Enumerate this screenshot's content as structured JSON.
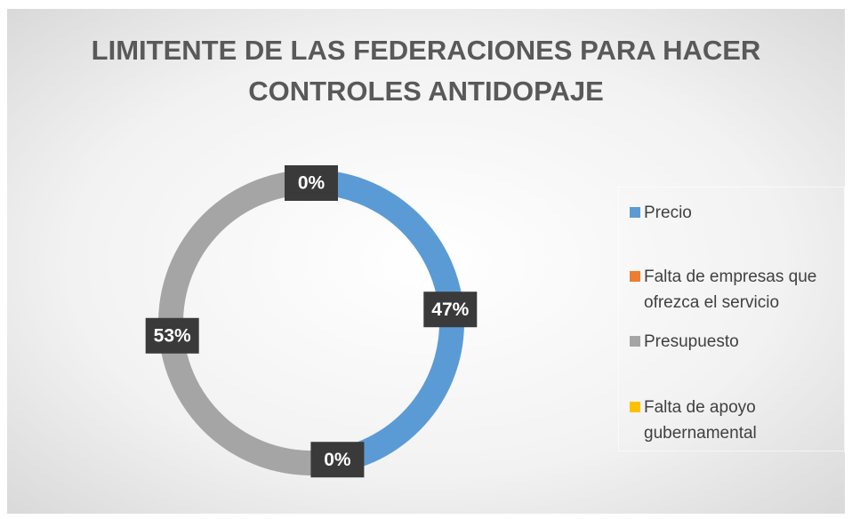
{
  "chart_data": {
    "type": "doughnut",
    "title": "LIMITENTE DE LAS FEDERACIONES PARA HACER CONTROLES ANTIDOPAJE",
    "categories": [
      "Precio",
      "Falta de empresas que ofrezca el servicio",
      "Presupuesto",
      "Falta de apoyo gubernamental"
    ],
    "values": [
      47,
      0,
      53,
      0
    ],
    "value_labels": [
      "47%",
      "0%",
      "53%",
      "0%"
    ],
    "colors": [
      "#5b9bd5",
      "#ed7d31",
      "#a5a5a5",
      "#ffc000"
    ],
    "legend": "right"
  }
}
